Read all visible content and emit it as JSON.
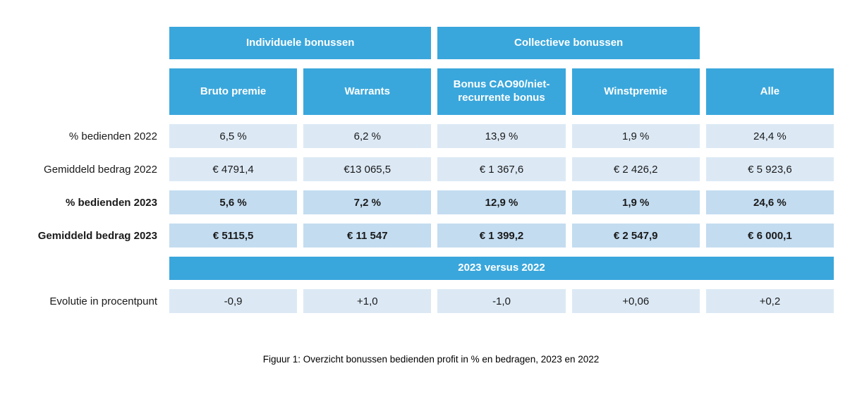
{
  "chart_data": {
    "type": "table",
    "title": "Figuur 1: Overzicht bonussen bedienden profit in % en bedragen, 2023 en 2022",
    "group_headers": [
      {
        "label": "Individuele bonussen",
        "span": 2
      },
      {
        "label": "Collectieve bonussen",
        "span": 2
      }
    ],
    "columns": [
      "Bruto premie",
      "Warrants",
      "Bonus CAO90/niet-recurrente bonus",
      "Winstpremie",
      "Alle"
    ],
    "rows": [
      {
        "label": "% bedienden 2022",
        "bold": false,
        "values": [
          "6,5 %",
          "6,2 %",
          "13,9 %",
          "1,9 %",
          "24,4 %"
        ]
      },
      {
        "label": "Gemiddeld bedrag 2022",
        "bold": false,
        "values": [
          "€ 4791,4",
          "€13 065,5",
          "€ 1 367,6",
          "€ 2 426,2",
          "€ 5 923,6"
        ]
      },
      {
        "label": "% bedienden 2023",
        "bold": true,
        "values": [
          "5,6 %",
          "7,2 %",
          "12,9 %",
          "1,9 %",
          "24,6 %"
        ]
      },
      {
        "label": "Gemiddeld bedrag 2023",
        "bold": true,
        "values": [
          "€ 5115,5",
          "€ 11 547",
          "€ 1 399,2",
          "€ 2 547,9",
          "€ 6 000,1"
        ]
      }
    ],
    "banner": "2023 versus 2022",
    "evolution": {
      "label": "Evolutie  in procentpunt",
      "values": [
        "-0,9",
        "+1,0",
        "-1,0",
        "+0,06",
        "+0,2"
      ]
    }
  },
  "colors": {
    "header_blue": "#3AA7DC",
    "cell_light": "#DCE9F5",
    "cell_dark": "#C3DCF0",
    "header_text": "#FFFFFF",
    "text_dark": "#1A1A1A"
  }
}
